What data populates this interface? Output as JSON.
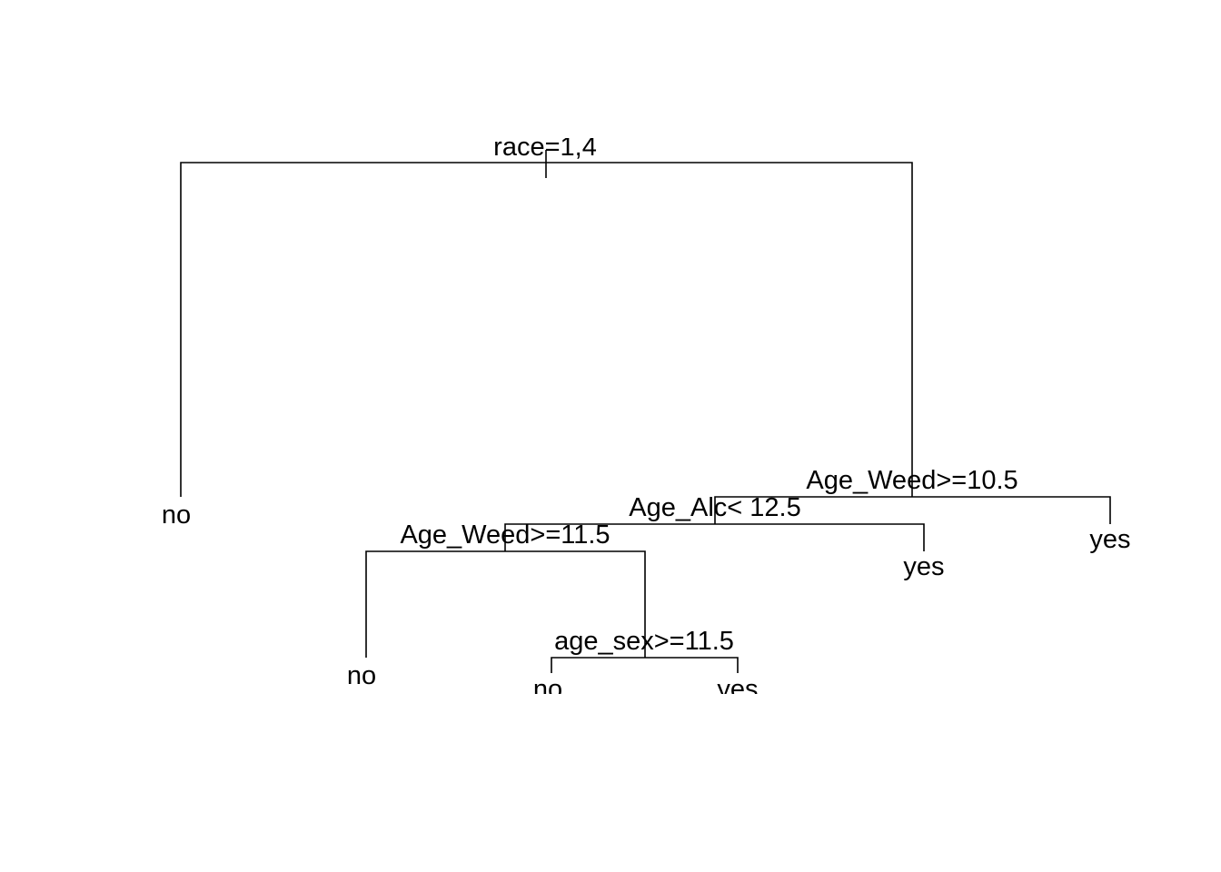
{
  "tree": {
    "root": {
      "split": "race=1,4",
      "left": {
        "leaf": "no"
      },
      "right": {
        "split": "Age_Weed>=10.5",
        "left": {
          "split": "Age_Alc< 12.5",
          "left": {
            "split": "Age_Weed>=11.5",
            "left": {
              "leaf": "no"
            },
            "right": {
              "split": "age_sex>=11.5",
              "left": {
                "leaf": "no"
              },
              "right": {
                "leaf": "yes"
              }
            }
          },
          "right": {
            "leaf": "yes"
          }
        },
        "right": {
          "leaf": "yes"
        }
      }
    }
  }
}
